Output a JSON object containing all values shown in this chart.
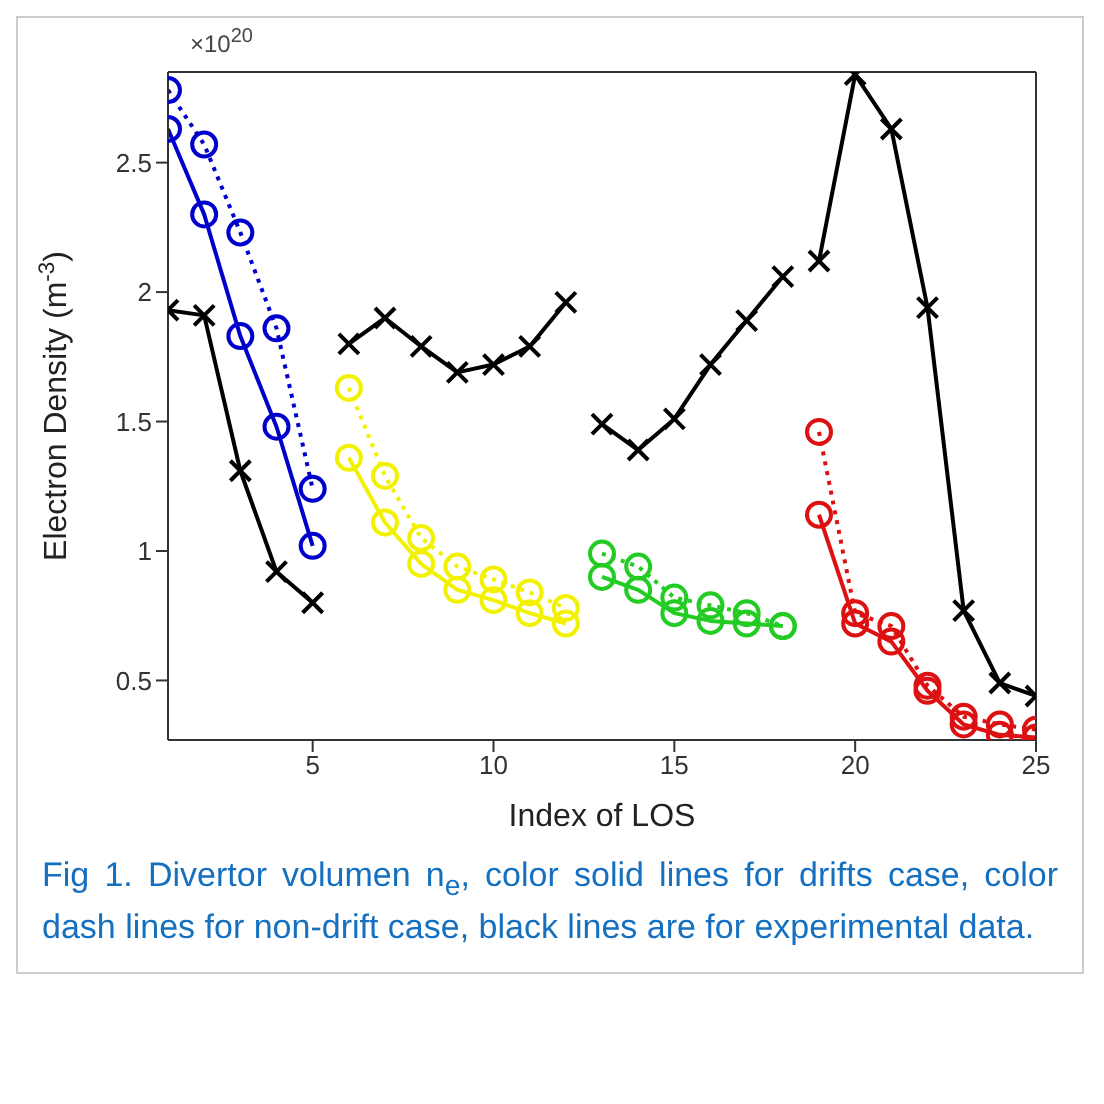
{
  "chart_data": {
    "type": "line",
    "xlabel": "Index of LOS",
    "ylabel": "Electron Density (m$^{-3}$)",
    "xlim": [
      1,
      25
    ],
    "xticks": [
      5,
      10,
      15,
      20,
      25
    ],
    "ylim": [
      0.27,
      2.85
    ],
    "yticks": [
      0.5,
      1,
      1.5,
      2,
      2.5
    ],
    "annotations": [
      "×10$^{20}$",
      "Fig 1. Divertor volumen n$_{e}$, color solid lines for drifts case, color dash lines for non-drift case, black lines are for experimental data."
    ],
    "series": [
      {
        "color": "#000000",
        "marker": "cross",
        "line_style": "solid",
        "x": [
          1,
          2,
          3,
          4,
          5
        ],
        "values": [
          1.93,
          1.91,
          1.31,
          0.92,
          0.8
        ]
      },
      {
        "color": "#0000cc",
        "marker": "circle",
        "line_style": "solid",
        "x": [
          1,
          2,
          3,
          4,
          5
        ],
        "values": [
          2.63,
          2.3,
          1.83,
          1.48,
          1.02
        ]
      },
      {
        "color": "#0000cc",
        "marker": "circle",
        "line_style": "dotted",
        "x": [
          1,
          2,
          3,
          4,
          5
        ],
        "values": [
          2.78,
          2.57,
          2.23,
          1.86,
          1.24
        ]
      },
      {
        "color": "#000000",
        "marker": "cross",
        "line_style": "solid",
        "x": [
          6,
          7,
          8,
          9,
          10,
          11,
          12
        ],
        "values": [
          1.8,
          1.9,
          1.79,
          1.69,
          1.72,
          1.79,
          1.96
        ]
      },
      {
        "color": "#f2f200",
        "marker": "circle",
        "line_style": "solid",
        "x": [
          6,
          7,
          8,
          9,
          10,
          11,
          12
        ],
        "values": [
          1.36,
          1.11,
          0.95,
          0.85,
          0.81,
          0.76,
          0.72
        ]
      },
      {
        "color": "#f2f200",
        "marker": "circle",
        "line_style": "dotted",
        "x": [
          6,
          7,
          8,
          9,
          10,
          11,
          12
        ],
        "values": [
          1.63,
          1.29,
          1.05,
          0.94,
          0.89,
          0.84,
          0.78
        ]
      },
      {
        "color": "#000000",
        "marker": "cross",
        "line_style": "solid",
        "x": [
          13,
          14,
          15,
          16,
          17,
          18
        ],
        "values": [
          1.49,
          1.39,
          1.51,
          1.72,
          1.89,
          2.06
        ]
      },
      {
        "color": "#22cc22",
        "marker": "circle",
        "line_style": "solid",
        "x": [
          13,
          14,
          15,
          16,
          17,
          18
        ],
        "values": [
          0.9,
          0.85,
          0.76,
          0.73,
          0.72,
          0.71
        ]
      },
      {
        "color": "#22cc22",
        "marker": "circle",
        "line_style": "dotted",
        "x": [
          13,
          14,
          15,
          16,
          17,
          18
        ],
        "values": [
          0.99,
          0.94,
          0.82,
          0.79,
          0.76,
          0.71
        ]
      },
      {
        "color": "#000000",
        "marker": "cross",
        "line_style": "solid",
        "x": [
          19,
          20,
          21,
          22,
          23,
          24,
          25
        ],
        "values": [
          2.12,
          2.84,
          2.63,
          1.94,
          0.77,
          0.49,
          0.44
        ]
      },
      {
        "color": "#dd1111",
        "marker": "circle",
        "line_style": "solid",
        "x": [
          19,
          20,
          21,
          22,
          23,
          24,
          25
        ],
        "values": [
          1.14,
          0.72,
          0.65,
          0.46,
          0.33,
          0.29,
          0.28
        ]
      },
      {
        "color": "#dd1111",
        "marker": "circle",
        "line_style": "dotted",
        "x": [
          19,
          20,
          21,
          22,
          23,
          24,
          25
        ],
        "values": [
          1.46,
          0.76,
          0.71,
          0.48,
          0.36,
          0.33,
          0.31
        ]
      }
    ]
  }
}
